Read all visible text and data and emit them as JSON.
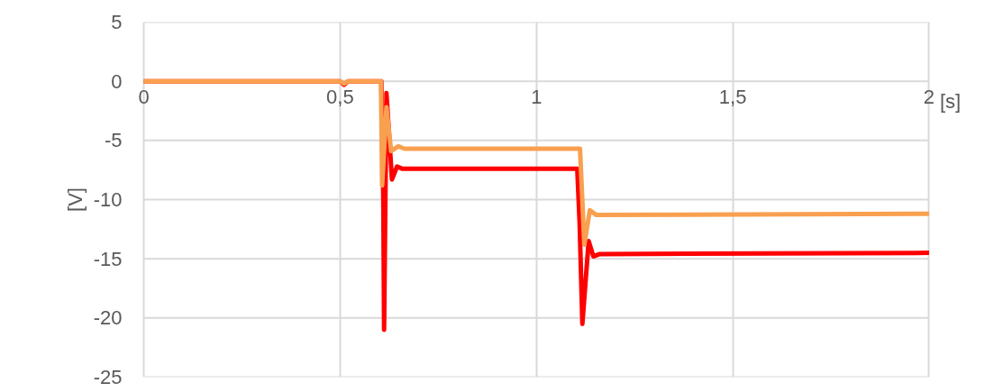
{
  "chart_data": {
    "type": "line",
    "xlabel": "[s]",
    "ylabel": "[V]",
    "xlim": [
      0,
      2
    ],
    "ylim": [
      -25,
      5
    ],
    "xticks": [
      0,
      {
        "value": 0.5,
        "label": "0,5"
      },
      1,
      {
        "value": 1.5,
        "label": "1,5"
      },
      2
    ],
    "yticks": [
      -25,
      -20,
      -15,
      -10,
      -5,
      0,
      5
    ],
    "grid": true,
    "marker": "none",
    "line_style": "solid",
    "series": [
      {
        "color": "#ff0000",
        "x": [
          0,
          0.5,
          0.51,
          0.52,
          0.605,
          0.61,
          0.612,
          0.618,
          0.632,
          0.645,
          0.659,
          1.104,
          1.11,
          1.117,
          1.133,
          1.145,
          1.161,
          2
        ],
        "values": [
          0,
          0,
          -0.3,
          0,
          0,
          -10,
          -21,
          -1,
          -8.3,
          -7.2,
          -7.4,
          -7.4,
          -12,
          -20.5,
          -13.5,
          -14.8,
          -14.6,
          -14.5
        ]
      },
      {
        "color": "#f9a050",
        "x": [
          0,
          0.5,
          0.51,
          0.52,
          0.604,
          0.607,
          0.618,
          0.63,
          0.648,
          0.664,
          1.111,
          1.122,
          1.136,
          1.152,
          2
        ],
        "values": [
          0,
          0,
          -0.2,
          0,
          0,
          -8.8,
          -2.2,
          -5.9,
          -5.5,
          -5.7,
          -5.7,
          -13.8,
          -10.9,
          -11.3,
          -11.2
        ]
      }
    ]
  }
}
